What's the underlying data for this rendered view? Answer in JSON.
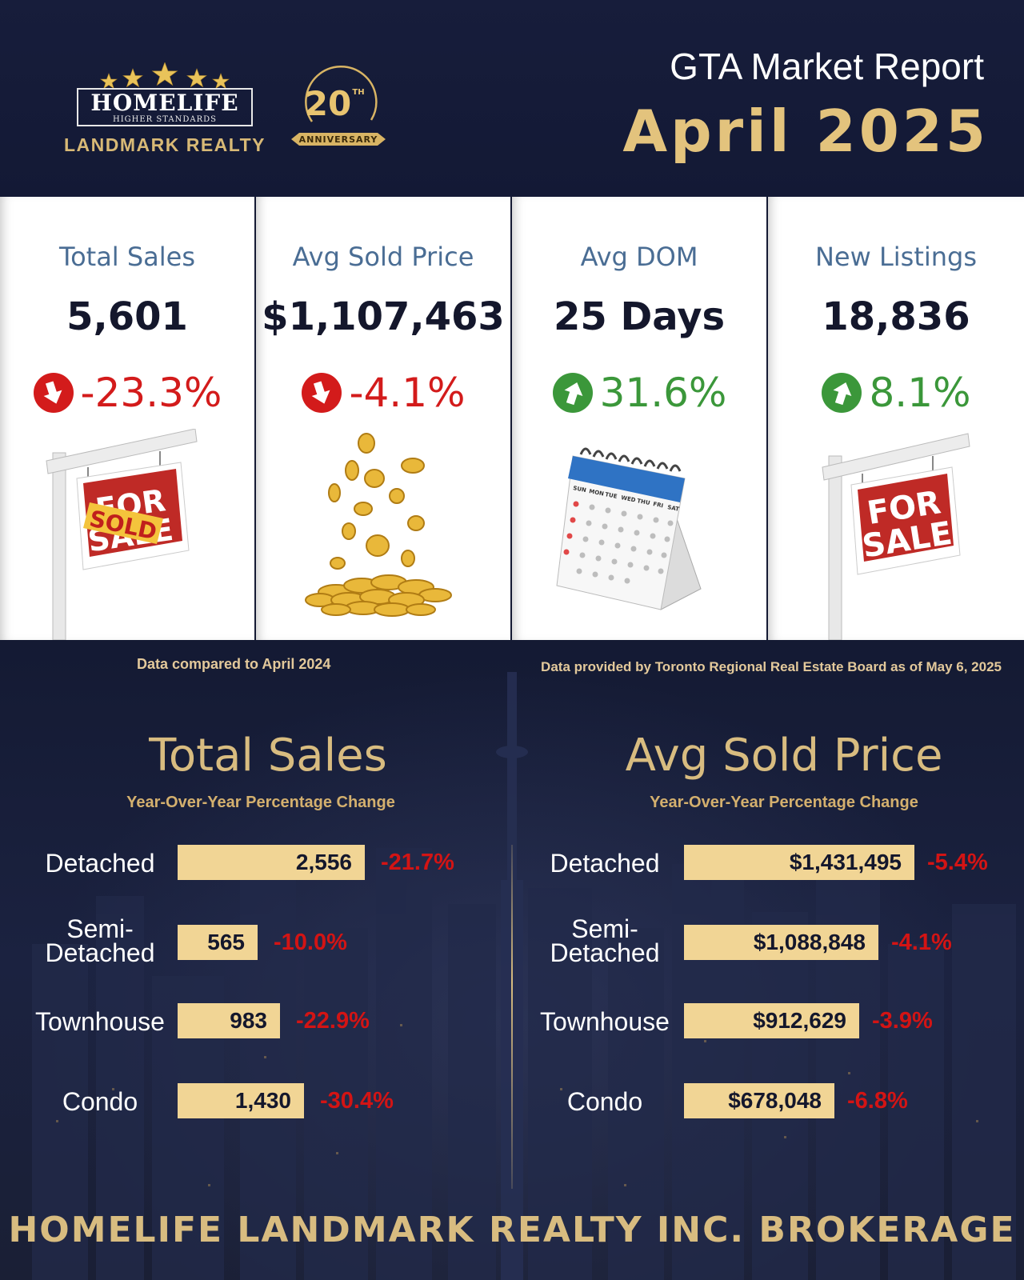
{
  "header": {
    "logo_brand": "HOMELIFE",
    "logo_tagline": "HIGHER STANDARDS",
    "logo_company": "LANDMARK REALTY",
    "anniversary_number": "20",
    "anniversary_suffix": "TH",
    "anniversary_banner": "ANNIVERSARY",
    "title": "GTA Market Report",
    "date": "April 2025"
  },
  "stats": [
    {
      "label": "Total Sales",
      "value": "5,601",
      "change": "-23.3%",
      "direction": "down",
      "illustration": "sold-sign"
    },
    {
      "label": "Avg Sold Price",
      "value": "$1,107,463",
      "change": "-4.1%",
      "direction": "down",
      "illustration": "gold-coins"
    },
    {
      "label": "Avg DOM",
      "value": "25 Days",
      "change": "31.6%",
      "direction": "up",
      "illustration": "calendar"
    },
    {
      "label": "New Listings",
      "value": "18,836",
      "change": "8.1%",
      "direction": "up",
      "illustration": "for-sale-sign"
    }
  ],
  "sign_text": {
    "for": "FOR",
    "sale": "SALE",
    "sold": "SOLD"
  },
  "calendar_days": [
    "SUN",
    "MON",
    "TUE",
    "WED",
    "THU",
    "FRI",
    "SAT"
  ],
  "footnotes": {
    "compared": "Data compared to April 2024",
    "source": "Data provided by Toronto Regional Real Estate Board as of  May 6, 2025"
  },
  "colors": {
    "navy": "#141a33",
    "gold": "#d8bc80",
    "bar_gold": "#f1d595",
    "down_red": "#d31b1b",
    "up_green": "#3b973a",
    "label_blue": "#4a6d94"
  },
  "chart_data": [
    {
      "type": "bar",
      "title": "Total Sales",
      "subtitle": "Year-Over-Year Percentage Change",
      "categories": [
        "Detached",
        "Semi-Detached",
        "Townhouse",
        "Condo"
      ],
      "category_labels": [
        [
          "Detached"
        ],
        [
          "Semi-",
          "Detached"
        ],
        [
          "Townhouse"
        ],
        [
          "Condo"
        ]
      ],
      "values": [
        2556,
        565,
        983,
        1430
      ],
      "value_labels": [
        "2,556",
        "565",
        "983",
        "1,430"
      ],
      "changes": [
        "-21.7%",
        "-10.0%",
        "-22.9%",
        "-30.4%"
      ]
    },
    {
      "type": "bar",
      "title": "Avg Sold Price",
      "subtitle": "Year-Over-Year Percentage Change",
      "categories": [
        "Detached",
        "Semi-Detached",
        "Townhouse",
        "Condo"
      ],
      "category_labels": [
        [
          "Detached"
        ],
        [
          "Semi-",
          "Detached"
        ],
        [
          "Townhouse"
        ],
        [
          "Condo"
        ]
      ],
      "values": [
        1431495,
        1088848,
        912629,
        678048
      ],
      "value_labels": [
        "$1,431,495",
        "$1,088,848",
        "$912,629",
        "$678,048"
      ],
      "changes": [
        "-5.4%",
        "-4.1%",
        "-3.9%",
        "-6.8%"
      ]
    }
  ],
  "footer": {
    "brokerage": "HOMELIFE LANDMARK REALTY INC. BROKERAGE"
  }
}
